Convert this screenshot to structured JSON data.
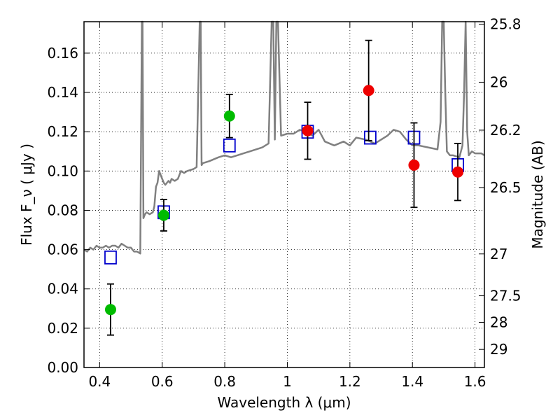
{
  "chart_data": {
    "type": "scatter",
    "xlabel": "Wavelength  λ (μm)",
    "ylabel": "Flux  F_ν  ( μJy )",
    "ylabel_right": "Magnitude (AB)",
    "xlim": [
      0.35,
      1.63
    ],
    "ylim": [
      0.0,
      0.176
    ],
    "grid": true,
    "x_ticks": [
      0.4,
      0.6,
      0.8,
      1.0,
      1.2,
      1.4,
      1.6
    ],
    "x_tick_labels": [
      "0.4",
      "0.6",
      "0.8",
      "1",
      "1.2",
      "1.4",
      "1.6"
    ],
    "y_ticks": [
      0.0,
      0.02,
      0.04,
      0.06,
      0.08,
      0.1,
      0.12,
      0.14,
      0.16
    ],
    "y_tick_labels": [
      "0.00",
      "0.02",
      "0.04",
      "0.06",
      "0.08",
      "0.10",
      "0.12",
      "0.14",
      "0.16"
    ],
    "right_ticks": [
      {
        "label": "25.8",
        "flux": 0.1747
      },
      {
        "label": "26",
        "flux": 0.1452
      },
      {
        "label": "26.2",
        "flux": 0.1208
      },
      {
        "label": "26.5",
        "flux": 0.0916
      },
      {
        "label": "27",
        "flux": 0.0578
      },
      {
        "label": "27.5",
        "flux": 0.0365
      },
      {
        "label": "28",
        "flux": 0.023
      },
      {
        "label": "29",
        "flux": 0.0092
      }
    ],
    "series": [
      {
        "kind": "line",
        "color": "#808080",
        "x": [
          0.35,
          0.36,
          0.37,
          0.38,
          0.39,
          0.4,
          0.41,
          0.42,
          0.43,
          0.44,
          0.45,
          0.46,
          0.47,
          0.48,
          0.49,
          0.5,
          0.51,
          0.52,
          0.53,
          0.535,
          0.537,
          0.54,
          0.545,
          0.55,
          0.56,
          0.57,
          0.575,
          0.58,
          0.585,
          0.59,
          0.6,
          0.605,
          0.61,
          0.62,
          0.625,
          0.63,
          0.64,
          0.65,
          0.66,
          0.67,
          0.68,
          0.7,
          0.71,
          0.72,
          0.723,
          0.726,
          0.73,
          0.75,
          0.78,
          0.8,
          0.82,
          0.84,
          0.86,
          0.88,
          0.9,
          0.92,
          0.94,
          0.95,
          0.955,
          0.96,
          0.965,
          0.97,
          0.98,
          1.0,
          1.02,
          1.04,
          1.06,
          1.08,
          1.1,
          1.12,
          1.15,
          1.18,
          1.2,
          1.22,
          1.25,
          1.28,
          1.3,
          1.32,
          1.34,
          1.36,
          1.38,
          1.4,
          1.42,
          1.45,
          1.48,
          1.49,
          1.495,
          1.5,
          1.505,
          1.51,
          1.52,
          1.53,
          1.55,
          1.56,
          1.565,
          1.57,
          1.575,
          1.58,
          1.59,
          1.6,
          1.61,
          1.62,
          1.63
        ],
        "y": [
          0.06,
          0.059,
          0.061,
          0.06,
          0.062,
          0.061,
          0.061,
          0.062,
          0.061,
          0.062,
          0.062,
          0.061,
          0.063,
          0.062,
          0.061,
          0.061,
          0.059,
          0.059,
          0.058,
          0.176,
          0.176,
          0.076,
          0.078,
          0.079,
          0.078,
          0.079,
          0.082,
          0.092,
          0.094,
          0.1,
          0.096,
          0.094,
          0.093,
          0.095,
          0.094,
          0.096,
          0.095,
          0.096,
          0.1,
          0.099,
          0.1,
          0.101,
          0.102,
          0.176,
          0.176,
          0.103,
          0.104,
          0.105,
          0.107,
          0.108,
          0.107,
          0.108,
          0.109,
          0.11,
          0.111,
          0.112,
          0.114,
          0.176,
          0.176,
          0.116,
          0.176,
          0.176,
          0.118,
          0.119,
          0.119,
          0.121,
          0.12,
          0.118,
          0.121,
          0.115,
          0.113,
          0.115,
          0.113,
          0.117,
          0.116,
          0.114,
          0.116,
          0.118,
          0.121,
          0.12,
          0.116,
          0.113,
          0.113,
          0.112,
          0.111,
          0.125,
          0.176,
          0.176,
          0.14,
          0.11,
          0.108,
          0.108,
          0.107,
          0.113,
          0.14,
          0.176,
          0.12,
          0.108,
          0.11,
          0.109,
          0.109,
          0.109,
          0.108
        ]
      },
      {
        "kind": "open-squares",
        "color": "#0000cc",
        "x": [
          0.435,
          0.605,
          0.815,
          1.065,
          1.265,
          1.405,
          1.545
        ],
        "y": [
          0.056,
          0.079,
          0.113,
          0.12,
          0.117,
          0.117,
          0.103
        ]
      },
      {
        "kind": "filled-circles",
        "color": "#00bb00",
        "x": [
          0.435,
          0.605,
          0.815
        ],
        "y": [
          0.0295,
          0.0775,
          0.128
        ],
        "err": [
          0.013,
          0.008,
          0.011
        ]
      },
      {
        "kind": "filled-circles",
        "color": "#ee0000",
        "x": [
          1.065,
          1.26,
          1.405,
          1.545
        ],
        "y": [
          0.1205,
          0.141,
          0.103,
          0.0995
        ],
        "err": [
          0.0145,
          0.0255,
          0.0215,
          0.0145
        ]
      }
    ]
  }
}
